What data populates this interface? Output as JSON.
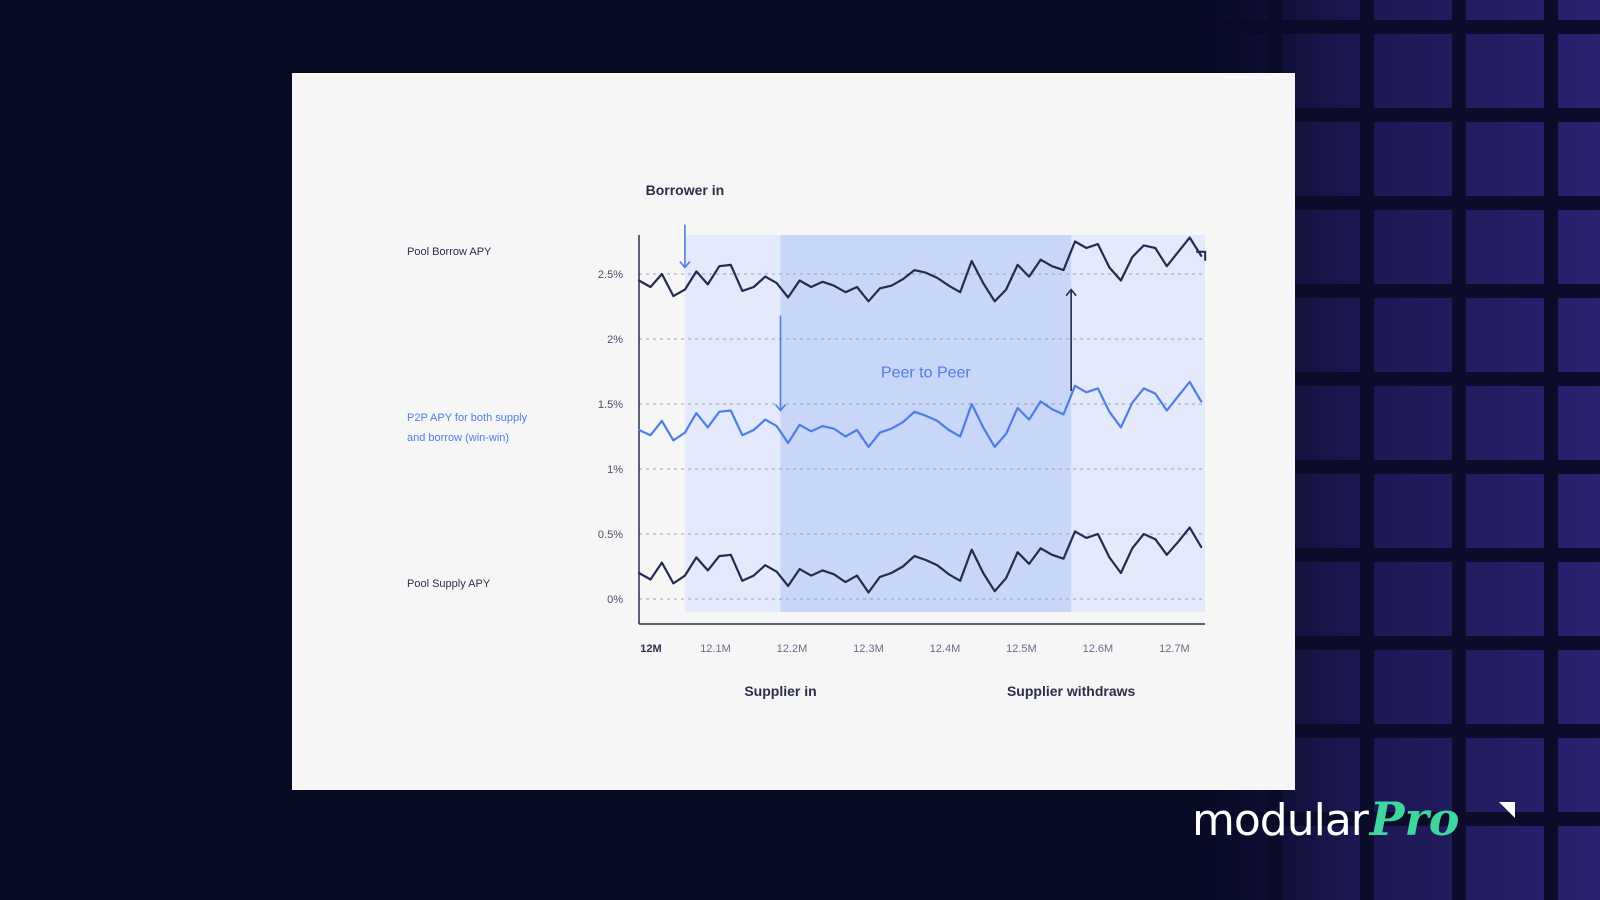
{
  "side_labels": {
    "pool_borrow": "Pool Borrow APY",
    "p2p_line1": "P2P APY for both supply",
    "p2p_line2": "and borrow (win-win)",
    "pool_supply": "Pool Supply APY"
  },
  "brand": {
    "name": "modular",
    "suffix": "Pro"
  },
  "colors": {
    "background": "#070a23",
    "card": "#f6f6f7",
    "borrow_line": "#262a52",
    "p2p_line": "#4e7de6",
    "supply_line": "#262a52",
    "band_light": "#e4eafb",
    "band_mid": "#c8d6f7",
    "brand_accent": "#3fd6a0"
  },
  "chart_data": {
    "type": "line",
    "x_tick_labels": [
      "12M",
      "12.1M",
      "12.2M",
      "12.3M",
      "12.4M",
      "12.5M",
      "12.6M",
      "12.7M"
    ],
    "y_tick_labels": [
      "2.5%",
      "2%",
      "1.5%",
      "1%",
      "0.5%",
      "0%"
    ],
    "y_ticks": [
      2.5,
      2.0,
      1.5,
      1.0,
      0.5,
      0.0
    ],
    "xlim": [
      12.0,
      12.74
    ],
    "ylim": [
      -0.1,
      2.8
    ],
    "grid": "horizontal dashed",
    "series": [
      {
        "name": "Pool Borrow APY",
        "x": [
          12.0,
          12.015,
          12.03,
          12.045,
          12.06,
          12.075,
          12.09,
          12.105,
          12.12,
          12.135,
          12.15,
          12.165,
          12.18,
          12.195,
          12.21,
          12.225,
          12.24,
          12.255,
          12.27,
          12.285,
          12.3,
          12.315,
          12.33,
          12.345,
          12.36,
          12.375,
          12.39,
          12.405,
          12.42,
          12.435,
          12.45,
          12.465,
          12.48,
          12.495,
          12.51,
          12.525,
          12.54,
          12.555,
          12.57,
          12.585,
          12.6,
          12.615,
          12.63,
          12.645,
          12.66,
          12.675,
          12.69,
          12.705,
          12.72,
          12.735
        ],
        "y": [
          2.45,
          2.4,
          2.5,
          2.33,
          2.38,
          2.52,
          2.42,
          2.56,
          2.57,
          2.37,
          2.4,
          2.48,
          2.43,
          2.32,
          2.45,
          2.4,
          2.44,
          2.41,
          2.36,
          2.4,
          2.29,
          2.39,
          2.41,
          2.46,
          2.53,
          2.51,
          2.47,
          2.41,
          2.36,
          2.6,
          2.43,
          2.29,
          2.38,
          2.57,
          2.48,
          2.61,
          2.56,
          2.53,
          2.75,
          2.7,
          2.73,
          2.55,
          2.45,
          2.63,
          2.72,
          2.7,
          2.56,
          2.67,
          2.78,
          2.64
        ],
        "color": "#262a52"
      },
      {
        "name": "P2P APY for both supply and borrow (win-win)",
        "x": [
          12.0,
          12.015,
          12.03,
          12.045,
          12.06,
          12.075,
          12.09,
          12.105,
          12.12,
          12.135,
          12.15,
          12.165,
          12.18,
          12.195,
          12.21,
          12.225,
          12.24,
          12.255,
          12.27,
          12.285,
          12.3,
          12.315,
          12.33,
          12.345,
          12.36,
          12.375,
          12.39,
          12.405,
          12.42,
          12.435,
          12.45,
          12.465,
          12.48,
          12.495,
          12.51,
          12.525,
          12.54,
          12.555,
          12.57,
          12.585,
          12.6,
          12.615,
          12.63,
          12.645,
          12.66,
          12.675,
          12.69,
          12.705,
          12.72,
          12.735
        ],
        "y": [
          1.3,
          1.26,
          1.37,
          1.22,
          1.28,
          1.43,
          1.32,
          1.44,
          1.45,
          1.26,
          1.3,
          1.38,
          1.33,
          1.2,
          1.34,
          1.29,
          1.33,
          1.31,
          1.25,
          1.3,
          1.17,
          1.28,
          1.31,
          1.36,
          1.44,
          1.41,
          1.37,
          1.3,
          1.25,
          1.5,
          1.32,
          1.17,
          1.27,
          1.47,
          1.38,
          1.52,
          1.46,
          1.42,
          1.64,
          1.59,
          1.62,
          1.44,
          1.32,
          1.51,
          1.62,
          1.58,
          1.45,
          1.56,
          1.67,
          1.52
        ],
        "color": "#4e7de6"
      },
      {
        "name": "Pool Supply APY",
        "x": [
          12.0,
          12.015,
          12.03,
          12.045,
          12.06,
          12.075,
          12.09,
          12.105,
          12.12,
          12.135,
          12.15,
          12.165,
          12.18,
          12.195,
          12.21,
          12.225,
          12.24,
          12.255,
          12.27,
          12.285,
          12.3,
          12.315,
          12.33,
          12.345,
          12.36,
          12.375,
          12.39,
          12.405,
          12.42,
          12.435,
          12.45,
          12.465,
          12.48,
          12.495,
          12.51,
          12.525,
          12.54,
          12.555,
          12.57,
          12.585,
          12.6,
          12.615,
          12.63,
          12.645,
          12.66,
          12.675,
          12.69,
          12.705,
          12.72,
          12.735
        ],
        "y": [
          0.2,
          0.15,
          0.28,
          0.12,
          0.18,
          0.32,
          0.22,
          0.33,
          0.34,
          0.14,
          0.18,
          0.26,
          0.21,
          0.1,
          0.23,
          0.18,
          0.22,
          0.19,
          0.13,
          0.18,
          0.05,
          0.17,
          0.2,
          0.25,
          0.33,
          0.3,
          0.26,
          0.19,
          0.14,
          0.38,
          0.2,
          0.06,
          0.16,
          0.36,
          0.27,
          0.39,
          0.34,
          0.31,
          0.52,
          0.47,
          0.5,
          0.32,
          0.2,
          0.39,
          0.5,
          0.46,
          0.34,
          0.44,
          0.55,
          0.4
        ],
        "color": "#262a52"
      }
    ],
    "regions": [
      {
        "from": 12.06,
        "to": 12.74,
        "color": "#e4eafb"
      },
      {
        "from": 12.185,
        "to": 12.565,
        "color": "#c8d6f7",
        "label": "Peer to Peer"
      }
    ],
    "annotations": [
      {
        "text": "Borrower in",
        "x": 12.06,
        "direction": "down",
        "from_y": 2.88,
        "to_y": 2.55,
        "color": "#4e7de6"
      },
      {
        "text": "Supplier in",
        "x": 12.185,
        "direction": "down",
        "from_y": 2.18,
        "to_y": 1.45,
        "color": "#4e7de6"
      },
      {
        "text": "Supplier withdraws",
        "x": 12.565,
        "direction": "up",
        "from_y": 1.6,
        "to_y": 2.38,
        "color": "#262a52"
      }
    ]
  }
}
